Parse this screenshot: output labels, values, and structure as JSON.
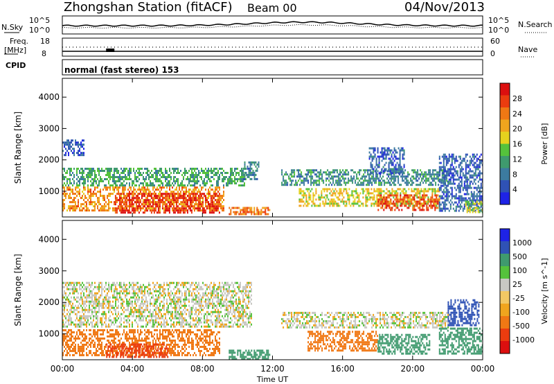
{
  "header": {
    "station": "Zhongshan Station (fitACF)",
    "beam": "Beam 00",
    "date": "04/Nov/2013"
  },
  "noise_panel": {
    "left_label": "N.Sky",
    "right_label": "N.Search",
    "left_ticks": [
      "10^5",
      "10^0"
    ],
    "right_ticks": [
      "10^5",
      "10^0"
    ]
  },
  "freq_panel": {
    "left_label_top": "Freq.",
    "left_label_unit": "[MHz]",
    "right_label": "Nave",
    "left_ticks": [
      "18",
      "8"
    ],
    "right_ticks": [
      "60",
      "0"
    ]
  },
  "cpid": {
    "label": "CPID",
    "mode_text": "normal (fast stereo) 153"
  },
  "colors": {
    "power_scale": [
      "#1e23e6",
      "#2f52b5",
      "#3c7ba0",
      "#3f9a6e",
      "#55c23c",
      "#e6d21e",
      "#f0a51e",
      "#f07814",
      "#eb3c0f",
      "#dc0f0f"
    ],
    "velocity_scale": [
      "#dc0f0f",
      "#eb3c0f",
      "#f07814",
      "#f0a51e",
      "#f2c864",
      "#c8c8c3",
      "#55c23c",
      "#3f9a6e",
      "#2f52b5",
      "#1e23e6"
    ]
  },
  "chart_data": [
    {
      "type": "heatmap",
      "title": "",
      "xlabel": "",
      "ylabel": "Slant Range [km]",
      "colorbar_label": "Power [dB]",
      "colorbar_ticks": [
        "28",
        "24",
        "20",
        "16",
        "12",
        "8",
        "4"
      ],
      "ylim": [
        180,
        4600
      ],
      "y_ticks": [
        "1000",
        "2000",
        "3000",
        "4000"
      ],
      "x_hours": [
        0,
        4,
        8,
        12,
        16,
        20,
        24
      ],
      "vmin": 0,
      "vmax": 32,
      "blobs": [
        {
          "t": [
            0.0,
            1.2
          ],
          "r": [
            2150,
            2650
          ],
          "v": 5
        },
        {
          "t": [
            0.0,
            10.5
          ],
          "r": [
            1200,
            1750
          ],
          "v": 12
        },
        {
          "t": [
            0.0,
            9.2
          ],
          "r": [
            400,
            1150
          ],
          "v": 22
        },
        {
          "t": [
            3.0,
            9.0
          ],
          "r": [
            350,
            950
          ],
          "v": 29
        },
        {
          "t": [
            9.5,
            11.8
          ],
          "r": [
            250,
            500
          ],
          "v": 24
        },
        {
          "t": [
            10.3,
            11.2
          ],
          "r": [
            1400,
            1950
          ],
          "v": 9
        },
        {
          "t": [
            12.5,
            22.0
          ],
          "r": [
            1200,
            1700
          ],
          "v": 10
        },
        {
          "t": [
            13.5,
            21.5
          ],
          "r": [
            550,
            1100
          ],
          "v": 18
        },
        {
          "t": [
            18.0,
            21.5
          ],
          "r": [
            400,
            900
          ],
          "v": 27
        },
        {
          "t": [
            17.5,
            19.5
          ],
          "r": [
            1600,
            2400
          ],
          "v": 6
        },
        {
          "t": [
            21.5,
            24.0
          ],
          "r": [
            400,
            2200
          ],
          "v": 6
        },
        {
          "t": [
            23.0,
            24.0
          ],
          "r": [
            350,
            700
          ],
          "v": 16
        }
      ]
    },
    {
      "type": "heatmap",
      "title": "",
      "xlabel": "Time UT",
      "ylabel": "Slant Range [km]",
      "colorbar_label": "Velocity [m s^-1]",
      "colorbar_ticks": [
        "1000",
        "500",
        "100",
        "25",
        "-25",
        "-100",
        "-500",
        "-1000"
      ],
      "ylim": [
        180,
        4600
      ],
      "y_ticks": [
        "1000",
        "2000",
        "3000",
        "4000"
      ],
      "x_ticks": [
        "00:00",
        "04:00",
        "08:00",
        "12:00",
        "16:00",
        "20:00",
        "00:00"
      ],
      "x_hours": [
        0,
        4,
        8,
        12,
        16,
        20,
        24
      ],
      "blobs": [
        {
          "t": [
            0.0,
            10.8
          ],
          "r": [
            1200,
            2650
          ],
          "v": 0
        },
        {
          "t": [
            0.0,
            9.0
          ],
          "r": [
            300,
            1150
          ],
          "v": -200
        },
        {
          "t": [
            2.5,
            6.0
          ],
          "r": [
            250,
            700
          ],
          "v": -600
        },
        {
          "t": [
            9.5,
            11.8
          ],
          "r": [
            200,
            500
          ],
          "v": 150
        },
        {
          "t": [
            12.5,
            22.0
          ],
          "r": [
            1200,
            1700
          ],
          "v": 0
        },
        {
          "t": [
            14.0,
            18.0
          ],
          "r": [
            500,
            1100
          ],
          "v": -200
        },
        {
          "t": [
            18.0,
            21.0
          ],
          "r": [
            400,
            1000
          ],
          "v": 150
        },
        {
          "t": [
            21.5,
            24.0
          ],
          "r": [
            400,
            1200
          ],
          "v": 300
        },
        {
          "t": [
            22.0,
            23.8
          ],
          "r": [
            1300,
            2100
          ],
          "v": 600
        }
      ]
    }
  ]
}
